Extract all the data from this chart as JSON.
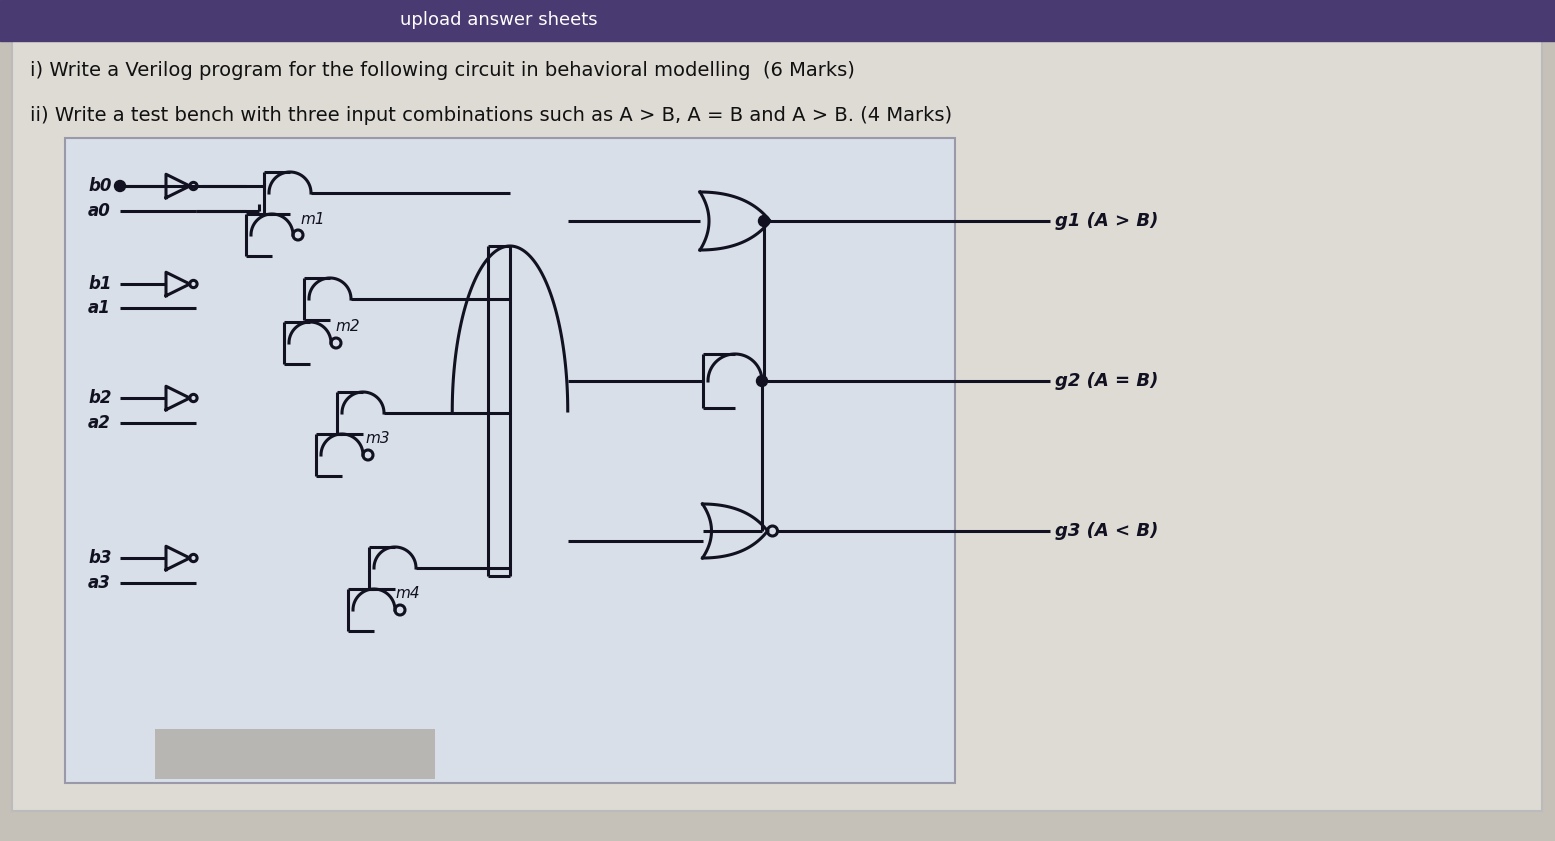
{
  "bg_top": "#5a4a82",
  "bg_main": "#c5c0b8",
  "panel_bg": "#dedad4",
  "circuit_bg": "#d8dfe8",
  "lc": "#111122",
  "title1": "i) Write a Verilog program for the following circuit in behavioral modelling  (6 Marks)",
  "title2": "ii) Write a test bench with three input combinations such as A > B, A = B and A > B. (4 Marks)",
  "input_labels": [
    "b0",
    "a0",
    "b1",
    "a1",
    "b2",
    "a2",
    "b3",
    "a3"
  ],
  "gate_labels": [
    "m1",
    "m2",
    "m3",
    "m4"
  ],
  "output_labels": [
    "g1 (A > B)",
    "g2 (A = B)",
    "g3 (A < B)"
  ]
}
